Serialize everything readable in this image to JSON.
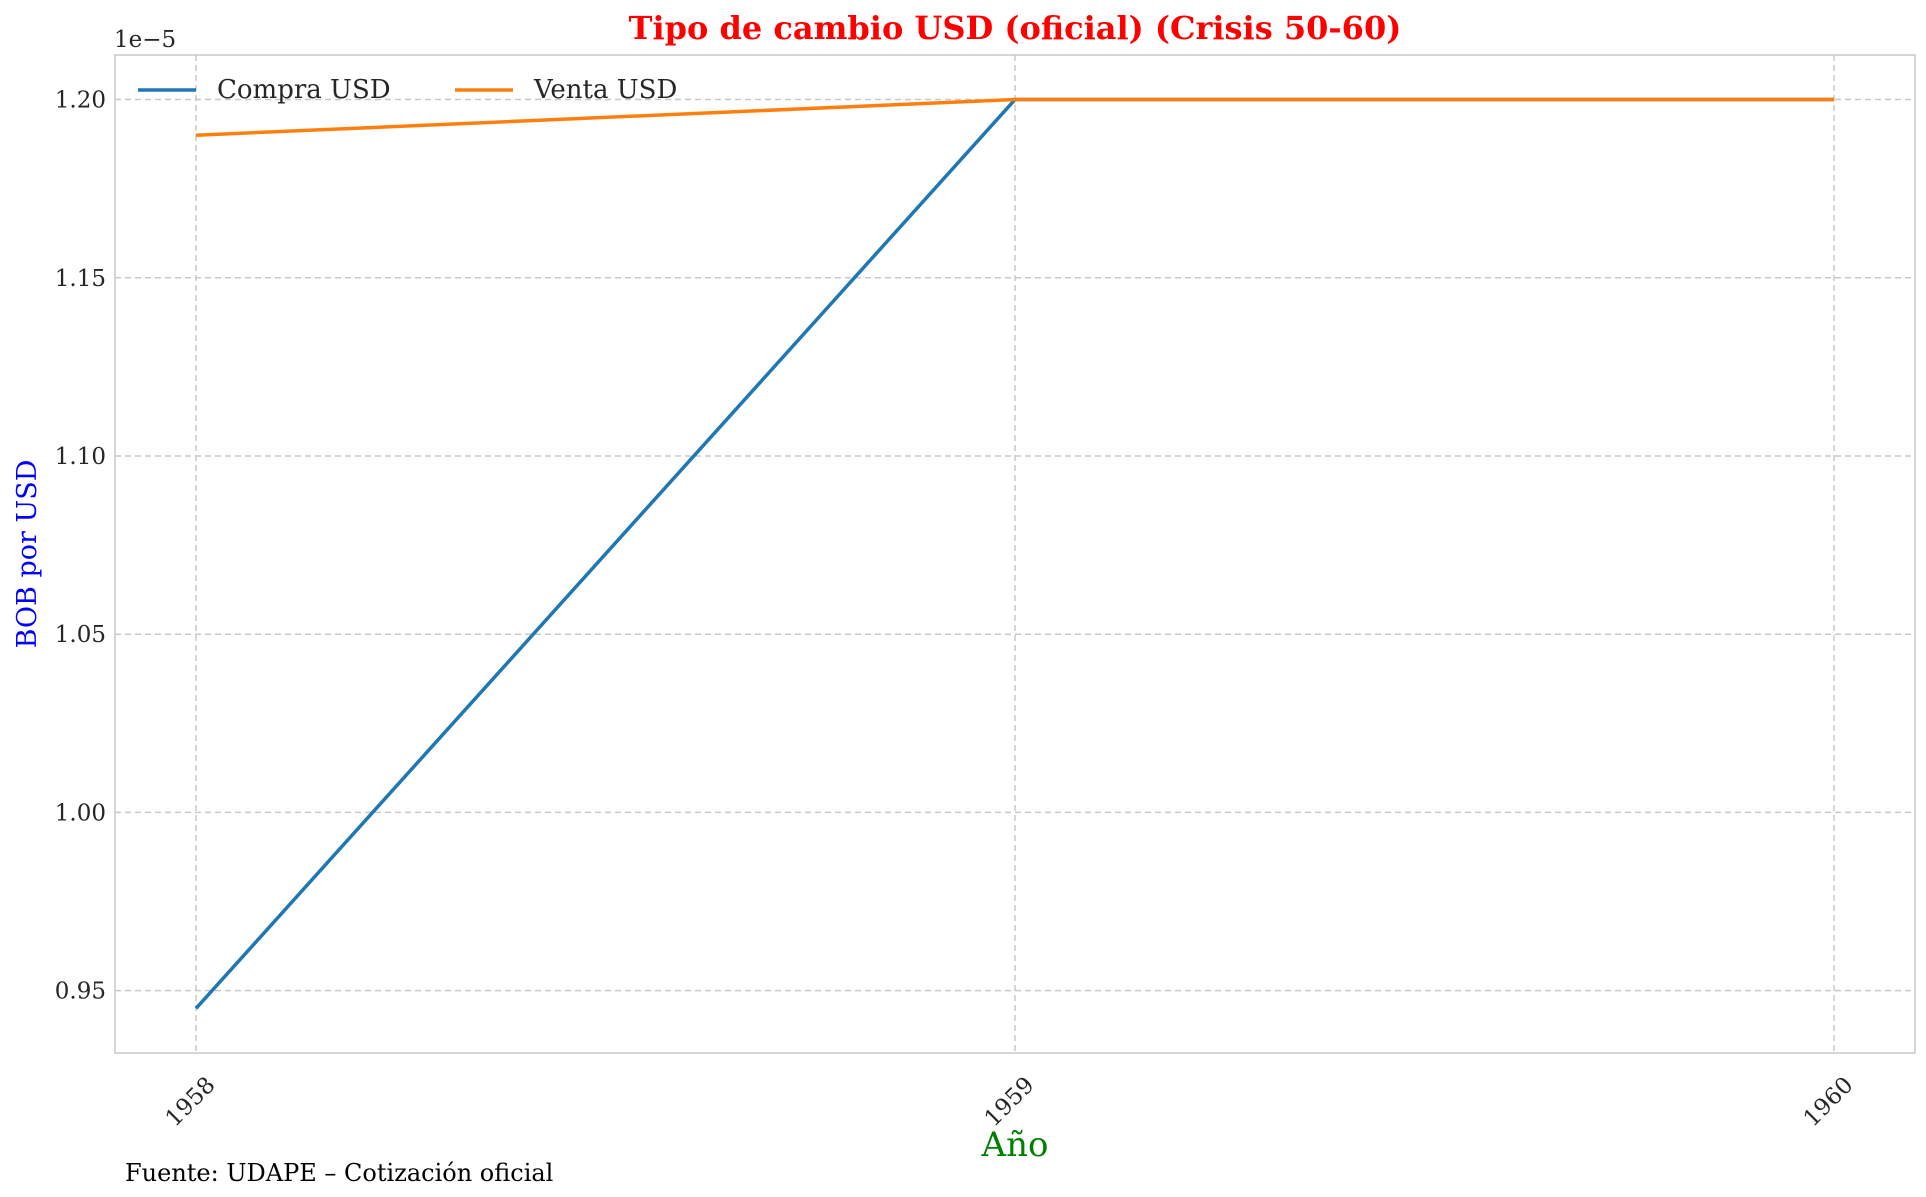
{
  "chart_data": {
    "type": "line",
    "title": "Tipo de cambio USD (oficial) (Crisis 50-60)",
    "xlabel": "Año",
    "ylabel": "BOB por USD",
    "y_offset_label": "1e−5",
    "y_scale_factor": 1e-05,
    "x": [
      "1958",
      "1959",
      "1960"
    ],
    "series": [
      {
        "name": "Compra USD",
        "color": "#1f77b4",
        "values": [
          9.45e-06,
          1.2e-05,
          1.2e-05
        ]
      },
      {
        "name": "Venta USD",
        "color": "#ff7f0e",
        "values": [
          1.19e-05,
          1.2e-05,
          1.2e-05
        ]
      }
    ],
    "ylim": [
      9.325e-06,
      1.2125e-05
    ],
    "yticks": [
      "0.95",
      "1.00",
      "1.05",
      "1.10",
      "1.15",
      "1.20"
    ],
    "ytick_values": [
      9.5e-06,
      1e-05,
      1.05e-05,
      1.1e-05,
      1.15e-05,
      1.2e-05
    ],
    "grid": true,
    "legend_position": "top-left",
    "title_color": "#ff0000",
    "xlabel_color": "#008000",
    "ylabel_color": "#0000ff"
  },
  "footer": {
    "source": "Fuente: UDAPE – Cotización oficial"
  }
}
